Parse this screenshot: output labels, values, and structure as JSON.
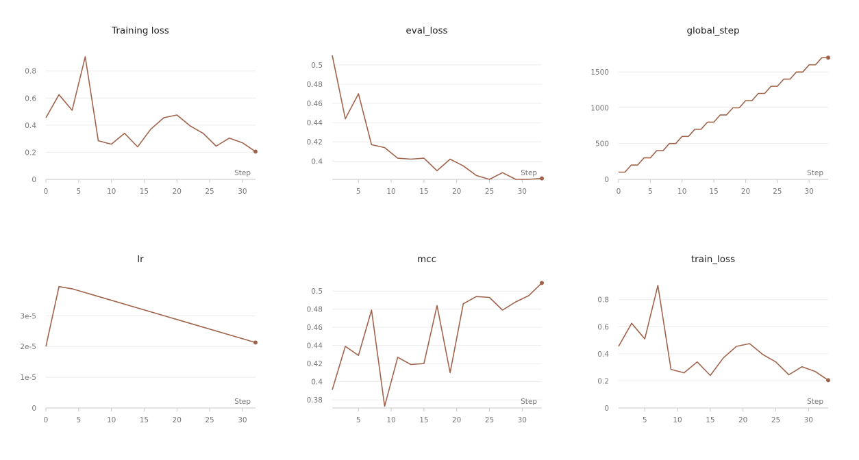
{
  "chart_data": [
    {
      "type": "line",
      "title": "Training loss",
      "xlabel": "Step",
      "xticks": [
        0,
        5,
        10,
        15,
        20,
        25,
        30
      ],
      "xlim": [
        0,
        32
      ],
      "yticks": [
        {
          "v": 0,
          "label": "0"
        },
        {
          "v": 0.2,
          "label": "0.2"
        },
        {
          "v": 0.4,
          "label": "0.4"
        },
        {
          "v": 0.6,
          "label": "0.6"
        },
        {
          "v": 0.8,
          "label": "0.8"
        }
      ],
      "ylim": [
        0,
        0.93
      ],
      "grid": true,
      "color": "#a0634b",
      "series": [
        {
          "x": [
            0,
            2,
            4,
            6,
            8,
            10,
            12,
            14,
            16,
            18,
            20,
            22,
            24,
            26,
            28,
            30,
            32
          ],
          "y": [
            0.455,
            0.625,
            0.51,
            0.905,
            0.285,
            0.26,
            0.34,
            0.24,
            0.37,
            0.455,
            0.475,
            0.395,
            0.34,
            0.245,
            0.305,
            0.27,
            0.205
          ]
        }
      ]
    },
    {
      "type": "line",
      "title": "eval_loss",
      "xlabel": "Step",
      "xticks": [
        5,
        10,
        15,
        20,
        25,
        30
      ],
      "xlim": [
        1,
        33
      ],
      "yticks": [
        {
          "v": 0.4,
          "label": "0.4"
        },
        {
          "v": 0.42,
          "label": "0.42"
        },
        {
          "v": 0.44,
          "label": "0.44"
        },
        {
          "v": 0.46,
          "label": "0.46"
        },
        {
          "v": 0.48,
          "label": "0.48"
        },
        {
          "v": 0.5,
          "label": "0.5"
        }
      ],
      "ylim": [
        0.381,
        0.512
      ],
      "grid": true,
      "color": "#a0634b",
      "series": [
        {
          "x": [
            1,
            3,
            5,
            7,
            9,
            11,
            13,
            15,
            17,
            19,
            21,
            23,
            25,
            27,
            29,
            31,
            33
          ],
          "y": [
            0.51,
            0.444,
            0.47,
            0.417,
            0.414,
            0.403,
            0.402,
            0.403,
            0.39,
            0.402,
            0.395,
            0.385,
            0.381,
            0.388,
            0.381,
            0.381,
            0.382
          ]
        }
      ]
    },
    {
      "type": "line",
      "title": "global_step",
      "xlabel": "Step",
      "xticks": [
        0,
        5,
        10,
        15,
        20,
        25,
        30
      ],
      "xlim": [
        0,
        33
      ],
      "yticks": [
        {
          "v": 0,
          "label": "0"
        },
        {
          "v": 500,
          "label": "500"
        },
        {
          "v": 1000,
          "label": "1000"
        },
        {
          "v": 1500,
          "label": "1500"
        }
      ],
      "ylim": [
        0,
        1760
      ],
      "grid": true,
      "color": "#a0634b",
      "series": [
        {
          "x": [
            0,
            1,
            2,
            3,
            4,
            5,
            6,
            7,
            8,
            9,
            10,
            11,
            12,
            13,
            14,
            15,
            16,
            17,
            18,
            19,
            20,
            21,
            22,
            23,
            24,
            25,
            26,
            27,
            28,
            29,
            30,
            31,
            32,
            33
          ],
          "y": [
            100,
            100,
            200,
            200,
            300,
            300,
            400,
            400,
            500,
            500,
            600,
            600,
            700,
            700,
            800,
            800,
            900,
            900,
            1000,
            1000,
            1100,
            1100,
            1200,
            1200,
            1300,
            1300,
            1400,
            1400,
            1500,
            1500,
            1600,
            1600,
            1700,
            1700
          ]
        }
      ]
    },
    {
      "type": "line",
      "title": "lr",
      "xlabel": "Step",
      "xticks": [
        0,
        5,
        10,
        15,
        20,
        25,
        30
      ],
      "xlim": [
        0,
        32
      ],
      "yticks": [
        {
          "v": 0,
          "label": "0"
        },
        {
          "v": 1e-05,
          "label": "1e-5"
        },
        {
          "v": 2e-05,
          "label": "2e-5"
        },
        {
          "v": 3e-05,
          "label": "3e-5"
        }
      ],
      "ylim": [
        0,
        4.1e-05
      ],
      "grid": true,
      "color": "#a0634b",
      "series": [
        {
          "x": [
            0,
            2,
            4,
            32
          ],
          "y": [
            2e-05,
            3.95e-05,
            3.88e-05,
            2.13e-05
          ]
        }
      ]
    },
    {
      "type": "line",
      "title": "mcc",
      "xlabel": "Step",
      "xticks": [
        5,
        10,
        15,
        20,
        25,
        30
      ],
      "xlim": [
        1,
        33
      ],
      "yticks": [
        {
          "v": 0.38,
          "label": "0.38"
        },
        {
          "v": 0.4,
          "label": "0.4"
        },
        {
          "v": 0.42,
          "label": "0.42"
        },
        {
          "v": 0.44,
          "label": "0.44"
        },
        {
          "v": 0.46,
          "label": "0.46"
        },
        {
          "v": 0.48,
          "label": "0.48"
        },
        {
          "v": 0.5,
          "label": "0.5"
        }
      ],
      "ylim": [
        0.371,
        0.51
      ],
      "grid": true,
      "color": "#a0634b",
      "series": [
        {
          "x": [
            1,
            3,
            5,
            7,
            9,
            11,
            13,
            15,
            17,
            19,
            21,
            23,
            25,
            27,
            29,
            31,
            33
          ],
          "y": [
            0.391,
            0.439,
            0.429,
            0.479,
            0.373,
            0.427,
            0.419,
            0.42,
            0.484,
            0.41,
            0.486,
            0.494,
            0.493,
            0.479,
            0.488,
            0.495,
            0.509
          ]
        }
      ]
    },
    {
      "type": "line",
      "title": "train_loss",
      "xlabel": "Step",
      "xticks": [
        5,
        10,
        15,
        20,
        25,
        30
      ],
      "xlim": [
        1,
        33
      ],
      "yticks": [
        {
          "v": 0,
          "label": "0"
        },
        {
          "v": 0.2,
          "label": "0.2"
        },
        {
          "v": 0.4,
          "label": "0.4"
        },
        {
          "v": 0.6,
          "label": "0.6"
        },
        {
          "v": 0.8,
          "label": "0.8"
        }
      ],
      "ylim": [
        0,
        0.93
      ],
      "grid": true,
      "color": "#a0634b",
      "series": [
        {
          "x": [
            1,
            3,
            5,
            7,
            9,
            11,
            13,
            15,
            17,
            19,
            21,
            23,
            25,
            27,
            29,
            31,
            33
          ],
          "y": [
            0.455,
            0.625,
            0.51,
            0.905,
            0.285,
            0.26,
            0.34,
            0.24,
            0.37,
            0.455,
            0.475,
            0.395,
            0.34,
            0.245,
            0.305,
            0.27,
            0.205
          ]
        }
      ]
    }
  ]
}
